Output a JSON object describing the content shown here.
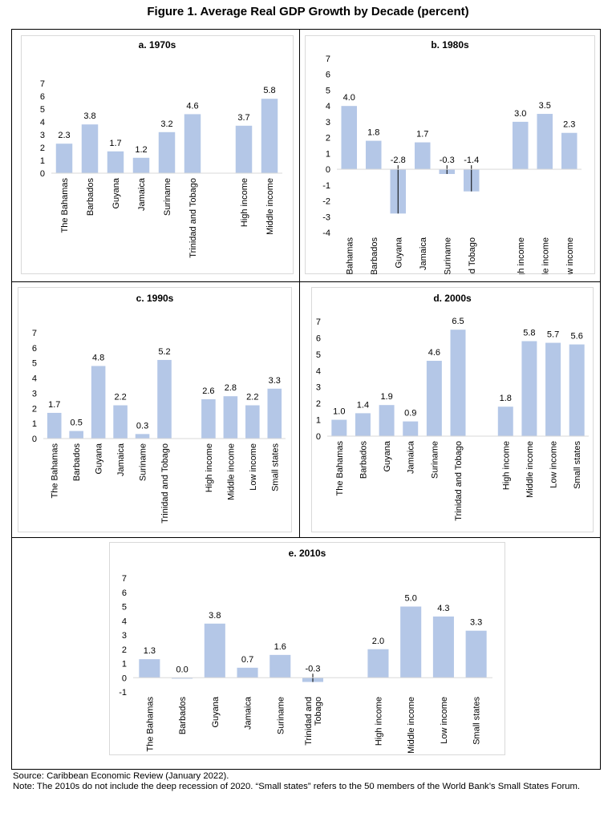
{
  "figure_title": "Figure 1. Average Real GDP Growth by Decade (percent)",
  "bar_color": "#b4c7e7",
  "footer": {
    "source": "Source: Caribbean Economic Review (January 2022).",
    "note": "Note: The 2010s do not include the deep recession of 2020. “Small states” refers to the 50 members of the World Bank’s Small States Forum."
  },
  "chart_data": [
    {
      "type": "bar",
      "title": "a. 1970s",
      "ylim": [
        0,
        7
      ],
      "ticks": [
        0,
        1,
        2,
        3,
        4,
        5,
        6,
        7
      ],
      "categories": [
        "The Bahamas",
        "Barbados",
        "Guyana",
        "Jamaica",
        "Suriname",
        "Trinidad and Tobago",
        "",
        "High income",
        "Middle income"
      ],
      "values": [
        2.3,
        3.8,
        1.7,
        1.2,
        3.2,
        4.6,
        null,
        3.7,
        5.8
      ],
      "labels": [
        "2.3",
        "3.8",
        "1.7",
        "1.2",
        "3.2",
        "4.6",
        "",
        "3.7",
        "5.8"
      ]
    },
    {
      "type": "bar",
      "title": "b. 1980s",
      "ylim": [
        -4,
        7
      ],
      "ticks": [
        -4,
        -3,
        -2,
        -1,
        0,
        1,
        2,
        3,
        4,
        5,
        6,
        7
      ],
      "categories": [
        "The Bahamas",
        "Barbados",
        "Guyana",
        "Jamaica",
        "Suriname",
        "Trinidad and Tobago",
        "",
        "High income",
        "Middle income",
        "Low income"
      ],
      "values": [
        4.0,
        1.8,
        -2.8,
        1.7,
        -0.3,
        -1.4,
        null,
        3.0,
        3.5,
        2.3
      ],
      "labels": [
        "4.0",
        "1.8",
        "-2.8",
        "1.7",
        "-0.3",
        "-1.4",
        "",
        "3.0",
        "3.5",
        "2.3"
      ]
    },
    {
      "type": "bar",
      "title": "c. 1990s",
      "ylim": [
        0,
        7
      ],
      "ticks": [
        0,
        1,
        2,
        3,
        4,
        5,
        6,
        7
      ],
      "categories": [
        "The Bahamas",
        "Barbados",
        "Guyana",
        "Jamaica",
        "Suriname",
        "Trinidad and Tobago",
        "",
        "High income",
        "Middle income",
        "Low income",
        "Small states"
      ],
      "values": [
        1.7,
        0.5,
        4.8,
        2.2,
        0.3,
        5.2,
        null,
        2.6,
        2.8,
        2.2,
        3.3
      ],
      "labels": [
        "1.7",
        "0.5",
        "4.8",
        "2.2",
        "0.3",
        "5.2",
        "",
        "2.6",
        "2.8",
        "2.2",
        "3.3"
      ]
    },
    {
      "type": "bar",
      "title": "d. 2000s",
      "ylim": [
        0,
        7
      ],
      "ticks": [
        0,
        1,
        2,
        3,
        4,
        5,
        6,
        7
      ],
      "categories": [
        "The Bahamas",
        "Barbados",
        "Guyana",
        "Jamaica",
        "Suriname",
        "Trinidad and Tobago",
        "",
        "High income",
        "Middle income",
        "Low income",
        "Small states"
      ],
      "values": [
        1.0,
        1.4,
        1.9,
        0.9,
        4.6,
        6.5,
        null,
        1.8,
        5.8,
        5.7,
        5.6
      ],
      "labels": [
        "1.0",
        "1.4",
        "1.9",
        "0.9",
        "4.6",
        "6.5",
        "",
        "1.8",
        "5.8",
        "5.7",
        "5.6"
      ]
    },
    {
      "type": "bar",
      "title": "e. 2010s",
      "ylim": [
        -1,
        7
      ],
      "ticks": [
        -1,
        0,
        1,
        2,
        3,
        4,
        5,
        6,
        7
      ],
      "categories": [
        "The Bahamas",
        "Barbados",
        "Guyana",
        "Jamaica",
        "Suriname",
        "Trinidad and Tobago",
        "",
        "High income",
        "Middle income",
        "Low income",
        "Small states"
      ],
      "values": [
        1.3,
        0.0,
        3.8,
        0.7,
        1.6,
        -0.3,
        null,
        2.0,
        5.0,
        4.3,
        3.3
      ],
      "labels": [
        "1.3",
        "0.0",
        "3.8",
        "0.7",
        "1.6",
        "-0.3",
        "",
        "2.0",
        "5.0",
        "4.3",
        "3.3"
      ]
    }
  ]
}
